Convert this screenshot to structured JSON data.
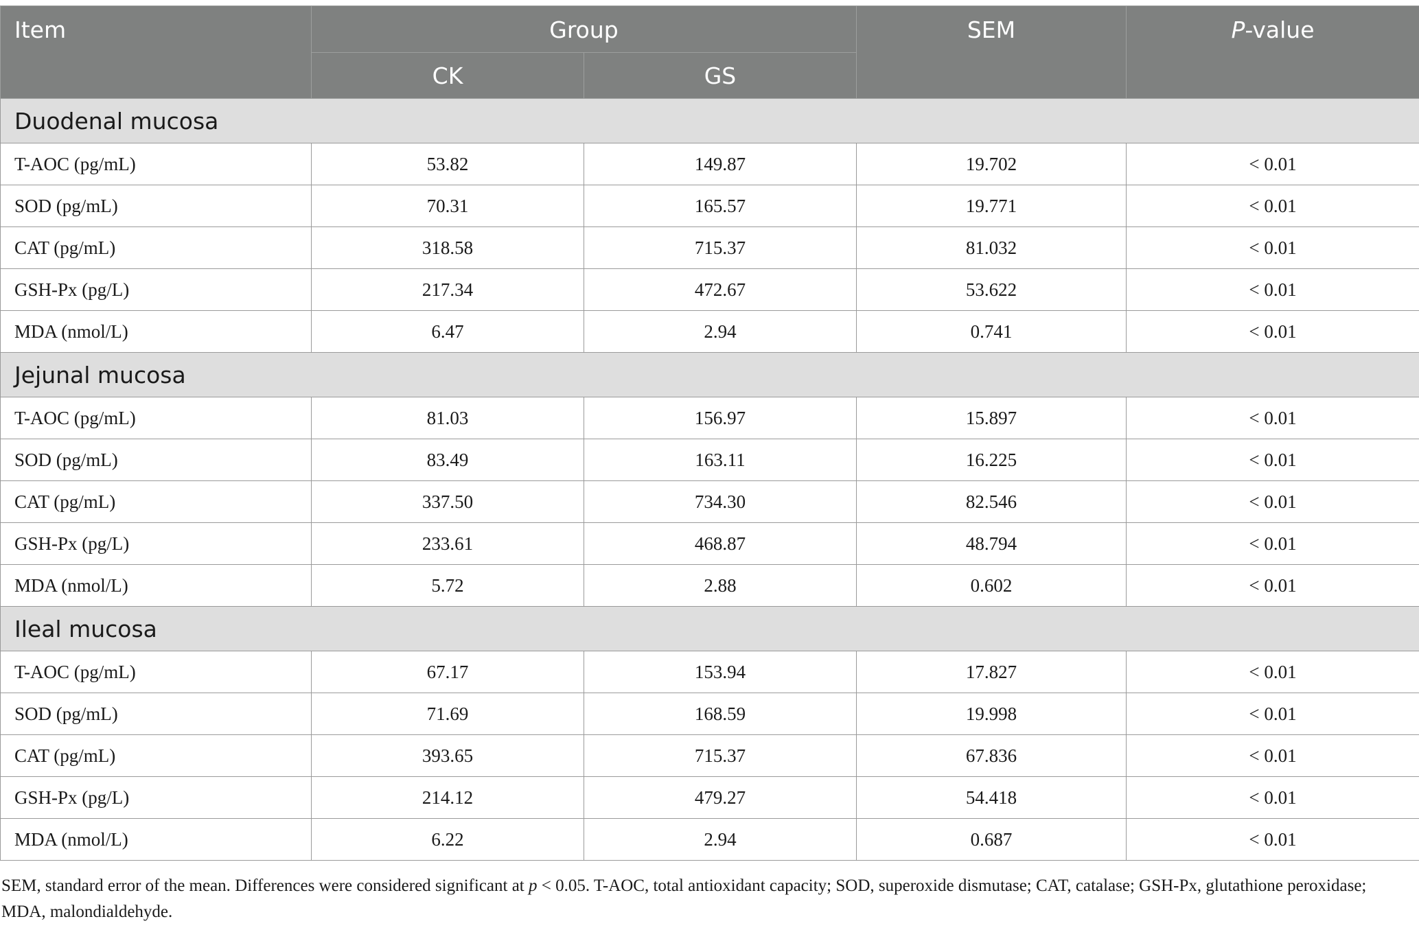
{
  "header": {
    "item": "Item",
    "group": "Group",
    "sem": "SEM",
    "p_italic": "P",
    "p_rest": "-value",
    "ck": "CK",
    "gs": "GS"
  },
  "sections": [
    {
      "title": "Duodenal mucosa",
      "rows": [
        {
          "item": "T-AOC (pg/mL)",
          "ck": "53.82",
          "gs": "149.87",
          "sem": "19.702",
          "p": "< 0.01"
        },
        {
          "item": "SOD (pg/mL)",
          "ck": "70.31",
          "gs": "165.57",
          "sem": "19.771",
          "p": "< 0.01"
        },
        {
          "item": "CAT (pg/mL)",
          "ck": "318.58",
          "gs": "715.37",
          "sem": "81.032",
          "p": "< 0.01"
        },
        {
          "item": "GSH-Px (pg/L)",
          "ck": "217.34",
          "gs": "472.67",
          "sem": "53.622",
          "p": "< 0.01"
        },
        {
          "item": "MDA (nmol/L)",
          "ck": "6.47",
          "gs": "2.94",
          "sem": "0.741",
          "p": "< 0.01"
        }
      ]
    },
    {
      "title": "Jejunal mucosa",
      "rows": [
        {
          "item": "T-AOC (pg/mL)",
          "ck": "81.03",
          "gs": "156.97",
          "sem": "15.897",
          "p": "< 0.01"
        },
        {
          "item": "SOD (pg/mL)",
          "ck": "83.49",
          "gs": "163.11",
          "sem": "16.225",
          "p": "< 0.01"
        },
        {
          "item": "CAT (pg/mL)",
          "ck": "337.50",
          "gs": "734.30",
          "sem": "82.546",
          "p": "< 0.01"
        },
        {
          "item": "GSH-Px (pg/L)",
          "ck": "233.61",
          "gs": "468.87",
          "sem": "48.794",
          "p": "< 0.01"
        },
        {
          "item": "MDA (nmol/L)",
          "ck": "5.72",
          "gs": "2.88",
          "sem": "0.602",
          "p": "< 0.01"
        }
      ]
    },
    {
      "title": "Ileal mucosa",
      "rows": [
        {
          "item": "T-AOC (pg/mL)",
          "ck": "67.17",
          "gs": "153.94",
          "sem": "17.827",
          "p": "< 0.01"
        },
        {
          "item": "SOD (pg/mL)",
          "ck": "71.69",
          "gs": "168.59",
          "sem": "19.998",
          "p": "< 0.01"
        },
        {
          "item": "CAT (pg/mL)",
          "ck": "393.65",
          "gs": "715.37",
          "sem": "67.836",
          "p": "< 0.01"
        },
        {
          "item": "GSH-Px (pg/L)",
          "ck": "214.12",
          "gs": "479.27",
          "sem": "54.418",
          "p": "< 0.01"
        },
        {
          "item": "MDA (nmol/L)",
          "ck": "6.22",
          "gs": "2.94",
          "sem": "0.687",
          "p": "< 0.01"
        }
      ]
    }
  ],
  "footnote": {
    "part1": "SEM, standard error of the mean. Differences were considered significant at ",
    "p_italic": "p",
    "part2": " < 0.05. T-AOC, total antioxidant capacity; SOD, superoxide dismutase; CAT, catalase; GSH-Px, glutathione peroxidase; MDA, malondialdehyde."
  },
  "colors": {
    "header_bg": "#7f8180",
    "section_bg": "#dedede",
    "border": "#9a9a9a"
  }
}
